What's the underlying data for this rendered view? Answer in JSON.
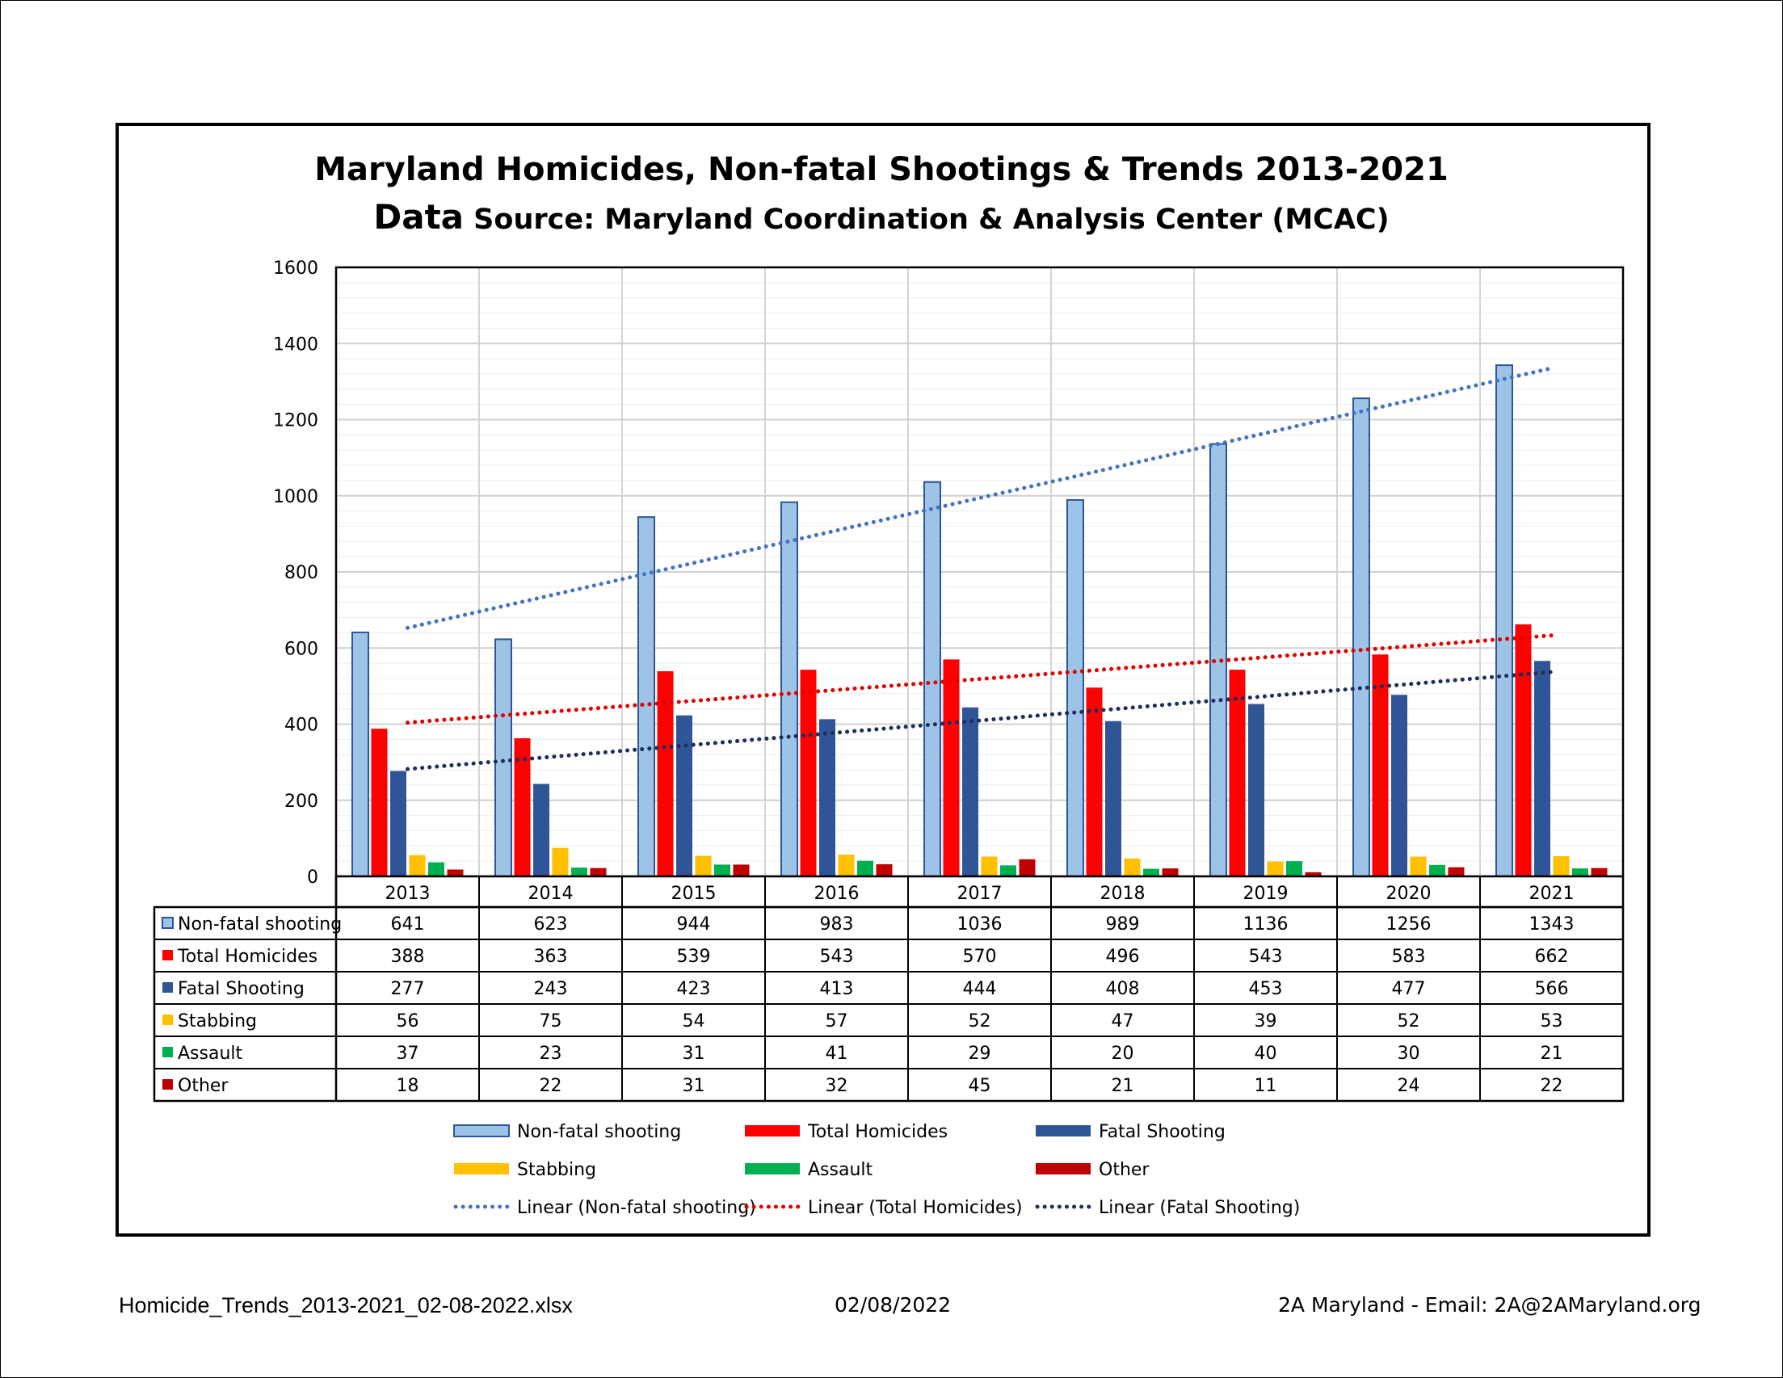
{
  "chart_data": {
    "type": "bar",
    "title": "Maryland Homicides, Non-fatal Shootings & Trends 2013-2021",
    "subtitle_strong": "Data",
    "subtitle_rest": " Source: Maryland Coordination & Analysis Center (MCAC)",
    "ylim": [
      0,
      1600
    ],
    "y_ticks": [
      "0",
      "200",
      "400",
      "600",
      "800",
      "1000",
      "1200",
      "1400",
      "1600"
    ],
    "grid": true,
    "categories": [
      "2013",
      "2014",
      "2015",
      "2016",
      "2017",
      "2018",
      "2019",
      "2020",
      "2021"
    ],
    "series": [
      {
        "name": "Non-fatal shooting",
        "color": "#9dc3e6",
        "stroke": "#2f5597",
        "values": [
          641,
          623,
          944,
          983,
          1036,
          989,
          1136,
          1256,
          1343
        ]
      },
      {
        "name": "Total Homicides",
        "color": "#ff0000",
        "stroke": "",
        "values": [
          388,
          363,
          539,
          543,
          570,
          496,
          543,
          583,
          662
        ]
      },
      {
        "name": "Fatal Shooting",
        "color": "#2f5597",
        "stroke": "",
        "values": [
          277,
          243,
          423,
          413,
          444,
          408,
          453,
          477,
          566
        ]
      },
      {
        "name": "Stabbing",
        "color": "#ffc000",
        "stroke": "",
        "values": [
          56,
          75,
          54,
          57,
          52,
          47,
          39,
          52,
          53
        ]
      },
      {
        "name": "Assault",
        "color": "#00b050",
        "stroke": "",
        "values": [
          37,
          23,
          31,
          41,
          29,
          20,
          40,
          30,
          21
        ]
      },
      {
        "name": "Other",
        "color": "#c00000",
        "stroke": "",
        "values": [
          18,
          22,
          31,
          32,
          45,
          21,
          11,
          24,
          22
        ]
      }
    ],
    "trendlines": [
      {
        "name": "Linear (Non-fatal shooting)",
        "color": "#4472c4",
        "start": 653,
        "end": 1335
      },
      {
        "name": "Linear (Total Homicides)",
        "color": "#e00000",
        "start": 404,
        "end": 633
      },
      {
        "name": "Linear (Fatal Shooting)",
        "color": "#1f2f5c",
        "start": 282,
        "end": 537
      }
    ],
    "legend_position": "bottom",
    "data_table": true
  },
  "footer": {
    "filename": "Homicide_Trends_2013-2021_02-08-2022.xlsx",
    "date": "02/08/2022",
    "contact": "2A Maryland - Email: 2A@2AMaryland.org"
  }
}
